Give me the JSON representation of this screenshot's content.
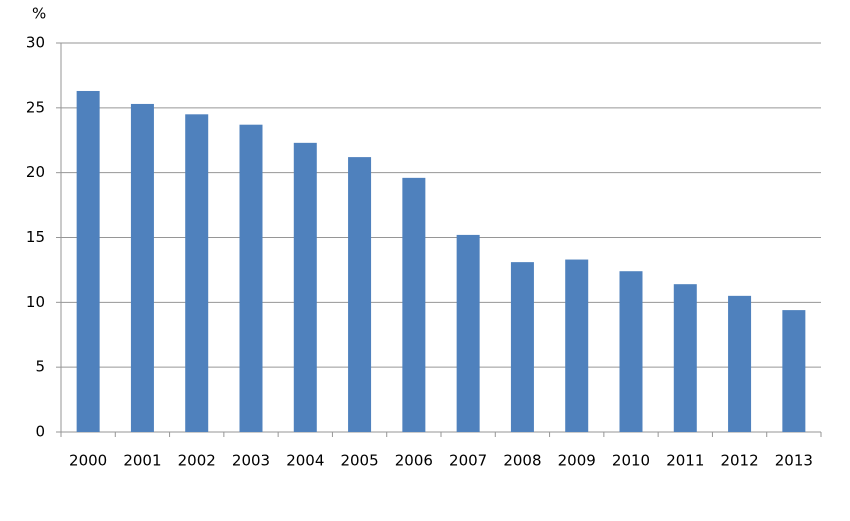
{
  "chart_data": {
    "type": "bar",
    "y_label": "%",
    "categories": [
      "2000",
      "2001",
      "2002",
      "2003",
      "2004",
      "2005",
      "2006",
      "2007",
      "2008",
      "2009",
      "2010",
      "2011",
      "2012",
      "2013"
    ],
    "values": [
      26.3,
      25.3,
      24.5,
      23.7,
      22.3,
      21.2,
      19.6,
      15.2,
      13.1,
      13.3,
      12.4,
      11.4,
      10.5,
      9.4
    ],
    "color": "#4f81bd",
    "ylim": [
      0,
      30
    ],
    "yticks": [
      0,
      5,
      10,
      15,
      20,
      25,
      30
    ],
    "grid": true
  }
}
